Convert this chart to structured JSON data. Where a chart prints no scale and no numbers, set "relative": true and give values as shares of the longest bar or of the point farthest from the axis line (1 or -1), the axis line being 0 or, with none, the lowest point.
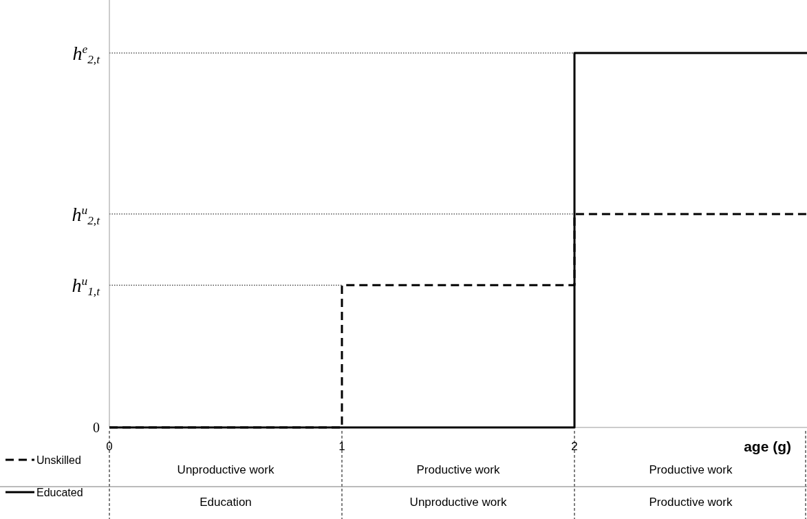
{
  "chart_data": {
    "type": "step",
    "xlabel": "age (g)",
    "xlim": [
      0,
      3
    ],
    "xticks": [
      0,
      1,
      2
    ],
    "relative": true,
    "series": [
      {
        "name": "Unskilled",
        "color": "#000000",
        "line_style": "dashed",
        "x": [
          0,
          1,
          2,
          3
        ],
        "values": [
          0,
          0.38,
          0.57,
          0.57
        ]
      },
      {
        "name": "Educated",
        "color": "#000000",
        "line_style": "solid",
        "x": [
          0,
          1,
          2,
          3
        ],
        "values": [
          0,
          0,
          1,
          1
        ]
      }
    ],
    "ref_lines": [
      {
        "axis": "y",
        "value": 0.38,
        "label": "h$^{u}$$_{1,t}$",
        "line_style": "dotted"
      },
      {
        "axis": "y",
        "value": 0.57,
        "label": "h$^{u}$$_{2,t}$",
        "line_style": "dotted"
      },
      {
        "axis": "y",
        "value": 1,
        "label": "h$^{e}$$_{2,t}$",
        "line_style": "dotted"
      }
    ],
    "legend": "bottom left",
    "annotations": [
      "Unproductive work",
      "Productive work",
      "Productive work",
      "Education",
      "Unproductive work",
      "Productive work",
      "0"
    ]
  }
}
